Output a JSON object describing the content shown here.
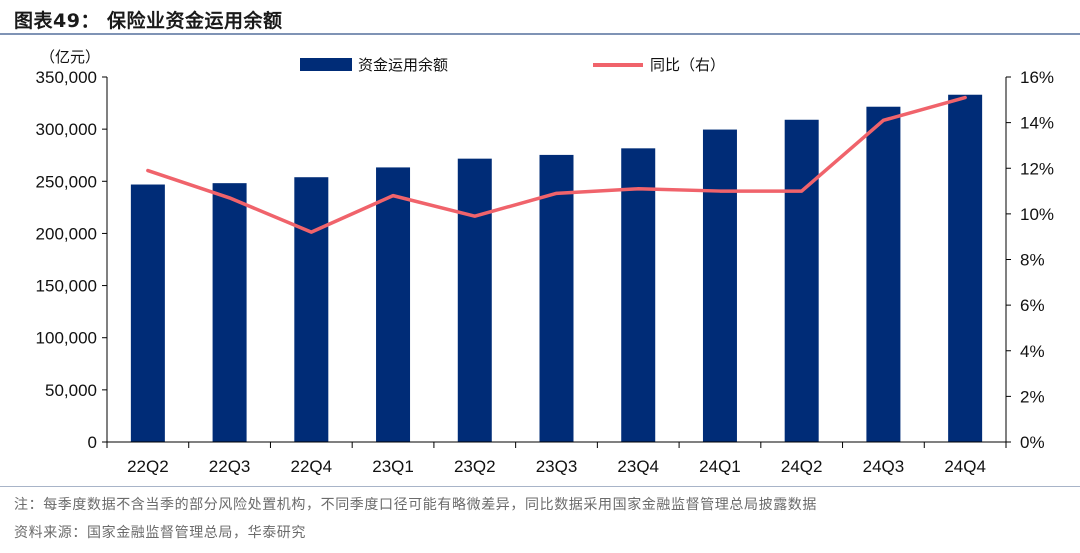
{
  "figure": {
    "title": "图表49：  保险业资金运用余额",
    "note": "注：每季度数据不含当季的部分风险处置机构，不同季度口径可能有略微差异，同比数据采用国家金融监督管理总局披露数据",
    "source": "资料来源：国家金融监督管理总局，华泰研究"
  },
  "colors": {
    "bar": "#002c77",
    "line": "#f0636b",
    "axis": "#000000"
  },
  "chart_data": {
    "type": "bar",
    "title": "保险业资金运用余额",
    "unit_label": "（亿元）",
    "categories": [
      "22Q2",
      "22Q3",
      "22Q4",
      "23Q1",
      "23Q2",
      "23Q3",
      "23Q4",
      "24Q1",
      "24Q2",
      "24Q3",
      "24Q4"
    ],
    "series": [
      {
        "name": "资金运用余额",
        "type": "bar",
        "axis": "left",
        "values": [
          246900,
          248200,
          253900,
          263300,
          271700,
          275300,
          281600,
          299600,
          309000,
          321500,
          333000
        ]
      },
      {
        "name": "同比（右）",
        "type": "line",
        "axis": "right",
        "values": [
          11.9,
          10.7,
          9.2,
          10.8,
          9.9,
          10.9,
          11.1,
          11.0,
          11.0,
          14.1,
          15.1
        ]
      }
    ],
    "y_left": {
      "min": 0,
      "max": 350000,
      "step": 50000,
      "tick_labels": [
        "0",
        "50,000",
        "100,000",
        "150,000",
        "200,000",
        "250,000",
        "300,000",
        "350,000"
      ]
    },
    "y_right": {
      "min": 0,
      "max": 16,
      "step": 2,
      "tick_labels": [
        "0%",
        "2%",
        "4%",
        "6%",
        "8%",
        "10%",
        "12%",
        "14%",
        "16%"
      ]
    },
    "legend_position": "top",
    "grid": false
  }
}
